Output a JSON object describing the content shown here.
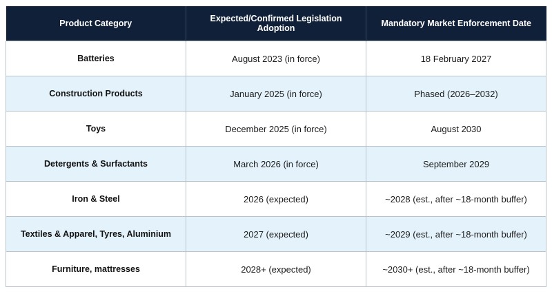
{
  "table": {
    "headers": [
      "Product Category",
      "Expected/Confirmed Legislation Adoption",
      "Mandatory Market Enforcement Date"
    ],
    "rows": [
      [
        "Batteries",
        "August 2023 (in force)",
        "18 February 2027"
      ],
      [
        "Construction Products",
        "January 2025 (in force)",
        "Phased (2026–2032)"
      ],
      [
        "Toys",
        "December 2025 (in force)",
        "August 2030"
      ],
      [
        "Detergents & Surfactants",
        "March 2026 (in force)",
        "September 2029"
      ],
      [
        "Iron & Steel",
        "2026 (expected)",
        "~2028 (est., after ~18-month buffer)"
      ],
      [
        "Textiles & Apparel, Tyres, Aluminium",
        "2027 (expected)",
        "~2029 (est., after ~18-month buffer)"
      ],
      [
        "Furniture, mattresses",
        "2028+ (expected)",
        "~2030+ (est., after ~18-month buffer)"
      ]
    ]
  },
  "colors": {
    "header_background": "#0f2038",
    "header_text": "#ffffff",
    "alt_row_background": "#e4f3fb",
    "row_background": "#ffffff",
    "border": "#b9c3cc"
  }
}
